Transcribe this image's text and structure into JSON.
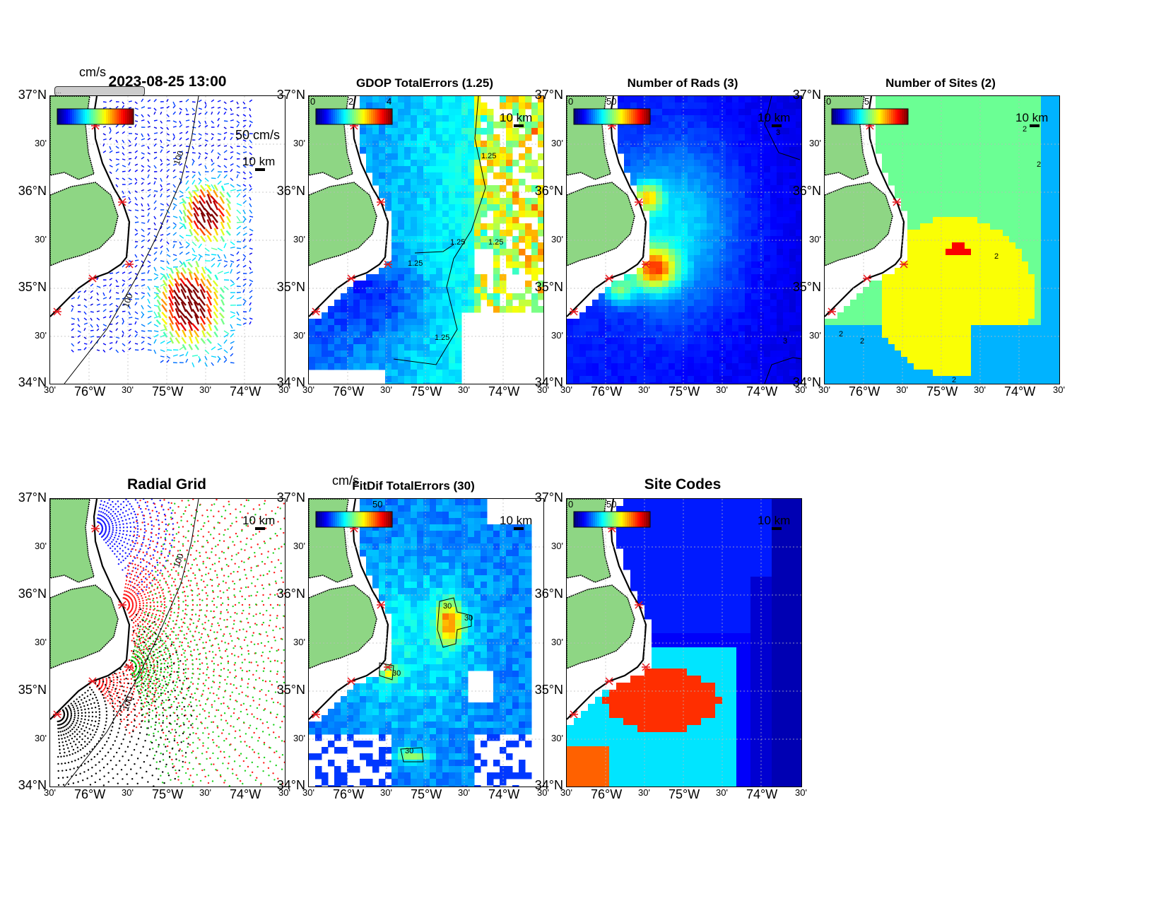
{
  "colors": {
    "land": "#8ed684",
    "coast": "#000000",
    "site_marker": "#e8141b",
    "radial_red": "#ff1a1a",
    "radial_blue": "#1a1aff",
    "radial_green": "#1ed21e",
    "radial_black": "#000000"
  },
  "axis_labels": {
    "lat": [
      "37°N",
      "30'",
      "36°N",
      "30'",
      "35°N",
      "30'",
      "34°N"
    ],
    "lon": [
      "30'",
      "76°W",
      "30'",
      "75°W",
      "30'",
      "74°W",
      "30'"
    ]
  },
  "scale_bar": "10 km",
  "panels": [
    {
      "id": "total-vectors",
      "title": "2023-08-25 13:00",
      "colorbar_unit": "cm/s",
      "colorbar_ticks": [],
      "vector_scale": "50 cm/s",
      "contour_labels": [
        "100",
        "100"
      ],
      "overprinted_label": "…"
    },
    {
      "id": "gdop",
      "title": "GDOP TotalErrors (1.25)",
      "colorbar_ticks": [
        "0",
        "2",
        "4"
      ],
      "contour_labels": [
        "1.25",
        "1.25",
        "1.25",
        "1.25",
        "1.25"
      ]
    },
    {
      "id": "num-rads",
      "title": "Number of Rads (3)",
      "colorbar_ticks": [
        "0",
        "50"
      ],
      "contour_labels": [
        "3",
        "3"
      ]
    },
    {
      "id": "num-sites",
      "title": "Number of Sites (2)",
      "colorbar_ticks": [
        "0",
        "5"
      ],
      "contour_labels": [
        "2",
        "2",
        "2",
        "2",
        "2",
        "2"
      ]
    },
    {
      "id": "radial-grid",
      "title": "Radial Grid",
      "contour_labels": [
        "100",
        "100"
      ]
    },
    {
      "id": "fitdif",
      "title": "FitDif TotalErrors (30)",
      "colorbar_unit": "cm/s",
      "colorbar_ticks": [
        "50"
      ],
      "contour_labels": [
        "30",
        "30",
        "30",
        "30"
      ]
    },
    {
      "id": "site-codes",
      "title": "Site Codes",
      "colorbar_ticks": [
        "0",
        "50"
      ]
    }
  ]
}
